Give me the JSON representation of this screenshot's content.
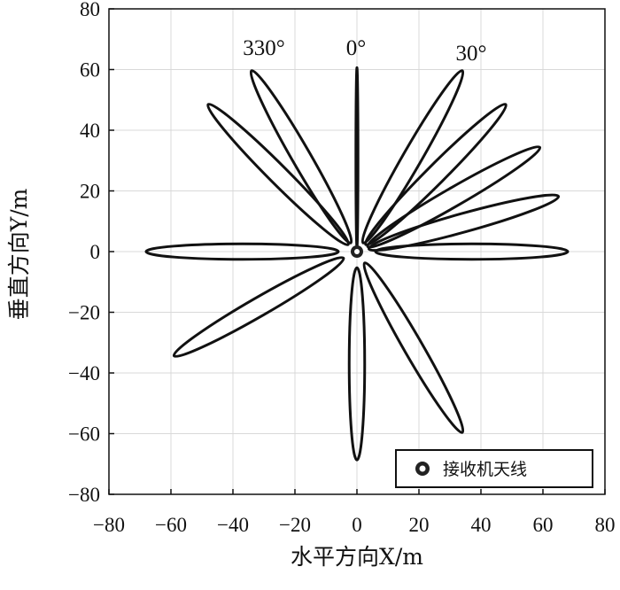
{
  "chart_data": {
    "type": "scatter",
    "title": "",
    "xlabel": "水平方向X/m",
    "ylabel": "垂直方向Y/m",
    "xlim": [
      -80,
      80
    ],
    "ylim": [
      -80,
      80
    ],
    "xticks": [
      -80,
      -60,
      -40,
      -20,
      0,
      20,
      40,
      60,
      80
    ],
    "yticks": [
      -80,
      -60,
      -40,
      -20,
      0,
      20,
      40,
      60,
      80
    ],
    "grid": true,
    "legend": {
      "position": "bottom-right",
      "entries": [
        "接收机天线"
      ]
    },
    "receiver_antenna": {
      "x": 0,
      "y": 0,
      "name": "接收机天线"
    },
    "angle_labels": [
      "330°",
      "0°",
      "30°"
    ],
    "lobes": [
      {
        "azimuth_deg": 0,
        "tip": [
          0,
          60
        ],
        "min_radius": 2,
        "half_width": 0.3
      },
      {
        "azimuth_deg": 30,
        "tip": [
          34,
          59
        ],
        "min_radius": 4,
        "half_width": 3
      },
      {
        "azimuth_deg": 45,
        "tip": [
          48,
          48
        ],
        "min_radius": 4,
        "half_width": 3
      },
      {
        "azimuth_deg": 60,
        "tip": [
          59,
          34
        ],
        "min_radius": 4,
        "half_width": 3
      },
      {
        "azimuth_deg": 75,
        "tip": [
          65,
          18
        ],
        "min_radius": 4,
        "half_width": 3
      },
      {
        "azimuth_deg": 90,
        "tip": [
          68,
          0
        ],
        "min_radius": 6,
        "half_width": 2.5
      },
      {
        "azimuth_deg": 150,
        "tip": [
          34,
          -59
        ],
        "min_radius": 5,
        "half_width": 3
      },
      {
        "azimuth_deg": 180,
        "tip": [
          0,
          -68
        ],
        "min_radius": 6,
        "half_width": 2.5
      },
      {
        "azimuth_deg": 240,
        "tip": [
          -59,
          -34
        ],
        "min_radius": 5,
        "half_width": 3
      },
      {
        "azimuth_deg": 270,
        "tip": [
          -68,
          0
        ],
        "min_radius": 6,
        "half_width": 2.5
      },
      {
        "azimuth_deg": 315,
        "tip": [
          -48,
          48
        ],
        "min_radius": 4,
        "half_width": 3
      },
      {
        "azimuth_deg": 330,
        "tip": [
          -34,
          59
        ],
        "min_radius": 4,
        "half_width": 3
      }
    ]
  }
}
